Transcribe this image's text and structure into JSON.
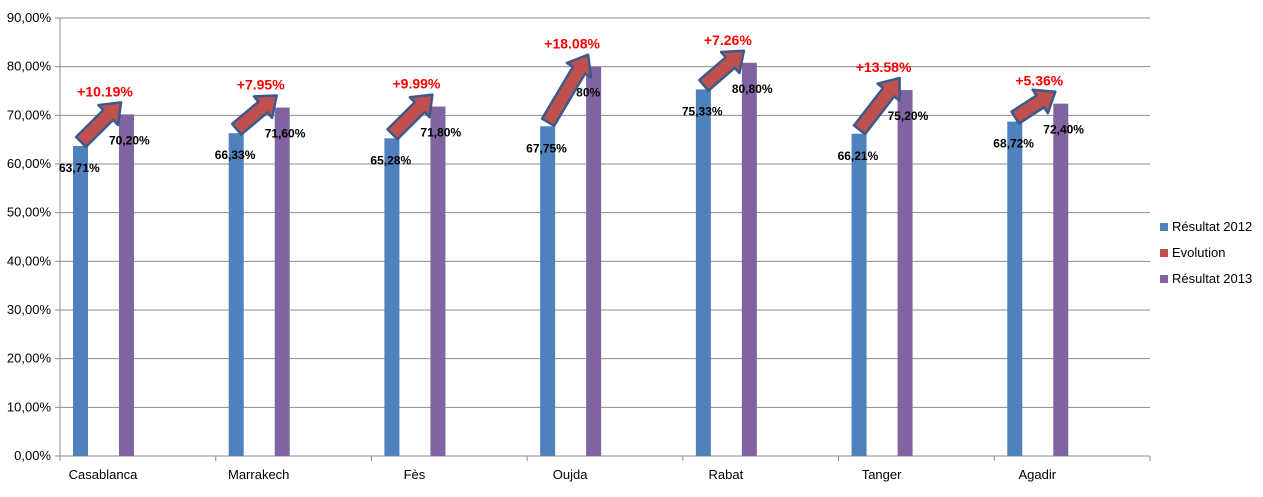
{
  "chart_data": {
    "type": "bar",
    "title": "",
    "xlabel": "",
    "ylabel": "",
    "ylim": [
      0,
      90
    ],
    "y_ticks": [
      "0,00%",
      "10,00%",
      "20,00%",
      "30,00%",
      "40,00%",
      "50,00%",
      "60,00%",
      "70,00%",
      "80,00%",
      "90,00%"
    ],
    "y_tick_values": [
      0,
      10,
      20,
      30,
      40,
      50,
      60,
      70,
      80,
      90
    ],
    "grid": true,
    "legend_position": "right",
    "categories": [
      "Casablanca",
      "Marrakech",
      "Fès",
      "Oujda",
      "Rabat",
      "Tanger",
      "Agadir"
    ],
    "series": [
      {
        "name": "Résultat 2012",
        "color": "#4F81BD",
        "values": [
          63.71,
          66.33,
          65.28,
          67.75,
          75.33,
          66.21,
          68.72
        ],
        "labels": [
          "63,71%",
          "66,33%",
          "65,28%",
          "67,75%",
          "75,33%",
          "66,21%",
          "68,72%"
        ]
      },
      {
        "name": "Evolution",
        "color": "#C0504D",
        "values": [
          10.19,
          7.95,
          9.99,
          18.08,
          7.26,
          13.58,
          5.36
        ],
        "labels": [
          "+10.19%",
          "+7.95%",
          "+9.99%",
          "+18.08%",
          "+7.26%",
          "+13.58%",
          "+5.36%"
        ]
      },
      {
        "name": "Résultat 2013",
        "color": "#8064A2",
        "values": [
          70.2,
          71.6,
          71.8,
          80,
          80.8,
          75.2,
          72.4
        ],
        "labels": [
          "70,20%",
          "71,60%",
          "71,80%",
          "80%",
          "80,80%",
          "75,20%",
          "72,40%"
        ]
      }
    ],
    "evolution_label_color": "#FF0000",
    "arrow_outline_color": "#3A5A8C"
  }
}
